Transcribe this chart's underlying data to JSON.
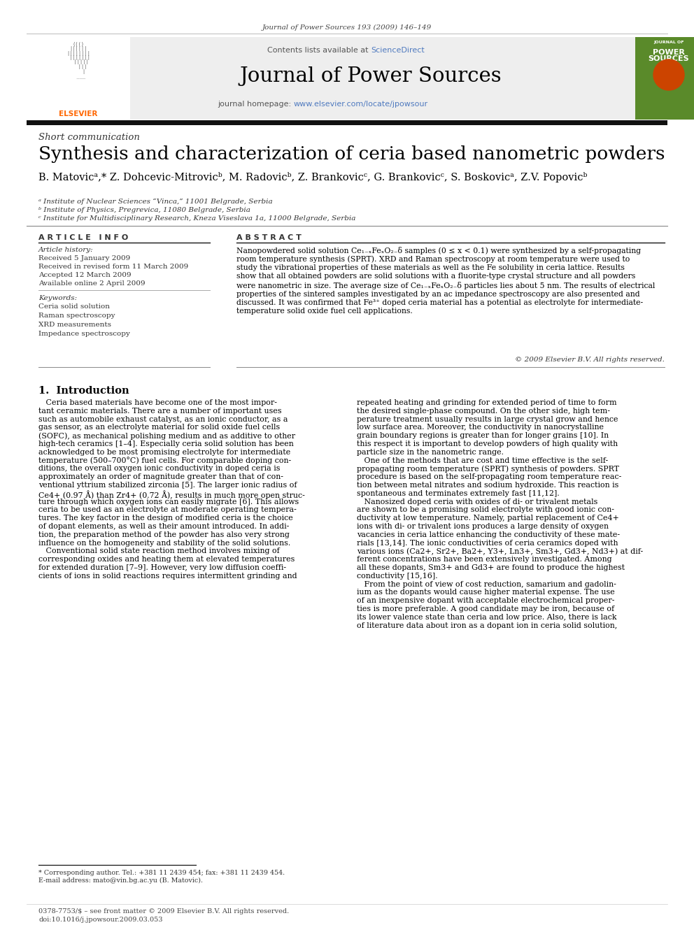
{
  "page_bg": "#ffffff",
  "header_journal": "Journal of Power Sources 193 (2009) 146–149",
  "journal_title": "Journal of Power Sources",
  "contents_text": "Contents lists available at ",
  "sciencedirect_text": "ScienceDirect",
  "homepage_prefix": "journal homepage: ",
  "homepage_link": "www.elsevier.com/locate/jpowsour",
  "section_label": "Short communication",
  "paper_title": "Synthesis and characterization of ceria based nanometric powders",
  "affil_a": "ᵃ Institute of Nuclear Sciences “Vinca,” 11001 Belgrade, Serbia",
  "affil_b": "ᵇ Institute of Physics, Pregrevica, 11080 Belgrade, Serbia",
  "affil_c": "ᶜ Institute for Multidisciplinary Research, Kneza Viseslava 1a, 11000 Belgrade, Serbia",
  "article_info_label": "A R T I C L E   I N F O",
  "abstract_label": "A B S T R A C T",
  "article_history_label": "Article history:",
  "received": "Received 5 January 2009",
  "revised": "Received in revised form 11 March 2009",
  "accepted": "Accepted 12 March 2009",
  "available": "Available online 2 April 2009",
  "keywords_label": "Keywords:",
  "keywords": [
    "Ceria solid solution",
    "Raman spectroscopy",
    "XRD measurements",
    "Impedance spectroscopy"
  ],
  "abstract_text": "Nanopowdered solid solution Ce1−xFexO2−δ samples (0 ≤ x < 0.1) were synthesized by a self-propagating room temperature synthesis (SPRT). XRD and Raman spectroscopy at room temperature were used to study the vibrational properties of these materials as well as the Fe solubility in ceria lattice. Results show that all obtained powders are solid solutions with a fluorite-type crystal structure and all powders were nanometric in size. The average size of Ce1−xFexO2−δ particles lies about 5 nm. The results of electrical properties of the sintered samples investigated by an ac impedance spectroscopy are also presented and discussed. It was confirmed that Fe3+ doped ceria material has a potential as electrolyte for intermediate-temperature solid oxide fuel cell applications.",
  "copyright": "© 2009 Elsevier B.V. All rights reserved.",
  "intro_heading": "1.  Introduction",
  "intro_col1_lines": [
    "   Ceria based materials have become one of the most impor-",
    "tant ceramic materials. There are a number of important uses",
    "such as automobile exhaust catalyst, as an ionic conductor, as a",
    "gas sensor, as an electrolyte material for solid oxide fuel cells",
    "(SOFC), as mechanical polishing medium and as additive to other",
    "high-tech ceramics [1–4]. Especially ceria solid solution has been",
    "acknowledged to be most promising electrolyte for intermediate",
    "temperature (500–700°C) fuel cells. For comparable doping con-",
    "ditions, the overall oxygen ionic conductivity in doped ceria is",
    "approximately an order of magnitude greater than that of con-",
    "ventional yttrium stabilized zirconia [5]. The larger ionic radius of",
    "Ce4+ (0.97 Å) than Zr4+ (0.72 Å), results in much more open struc-",
    "ture through which oxygen ions can easily migrate [6]. This allows",
    "ceria to be used as an electrolyte at moderate operating tempera-",
    "tures. The key factor in the design of modified ceria is the choice",
    "of dopant elements, as well as their amount introduced. In addi-",
    "tion, the preparation method of the powder has also very strong",
    "influence on the homogeneity and stability of the solid solutions.",
    "   Conventional solid state reaction method involves mixing of",
    "corresponding oxides and heating them at elevated temperatures",
    "for extended duration [7–9]. However, very low diffusion coeffi-",
    "cients of ions in solid reactions requires intermittent grinding and"
  ],
  "intro_col2_lines": [
    "repeated heating and grinding for extended period of time to form",
    "the desired single-phase compound. On the other side, high tem-",
    "perature treatment usually results in large crystal grow and hence",
    "low surface area. Moreover, the conductivity in nanocrystalline",
    "grain boundary regions is greater than for longer grains [10]. In",
    "this respect it is important to develop powders of high quality with",
    "particle size in the nanometric range.",
    "   One of the methods that are cost and time effective is the self-",
    "propagating room temperature (SPRT) synthesis of powders. SPRT",
    "procedure is based on the self-propagating room temperature reac-",
    "tion between metal nitrates and sodium hydroxide. This reaction is",
    "spontaneous and terminates extremely fast [11,12].",
    "   Nanosized doped ceria with oxides of di- or trivalent metals",
    "are shown to be a promising solid electrolyte with good ionic con-",
    "ductivity at low temperature. Namely, partial replacement of Ce4+",
    "ions with di- or trivalent ions produces a large density of oxygen",
    "vacancies in ceria lattice enhancing the conductivity of these mate-",
    "rials [13,14]. The ionic conductivities of ceria ceramics doped with",
    "various ions (Ca2+, Sr2+, Ba2+, Y3+, Ln3+, Sm3+, Gd3+, Nd3+) at dif-",
    "ferent concentrations have been extensively investigated. Among",
    "all these dopants, Sm3+ and Gd3+ are found to produce the highest",
    "conductivity [15,16].",
    "   From the point of view of cost reduction, samarium and gadolin-",
    "ium as the dopants would cause higher material expense. The use",
    "of an inexpensive dopant with acceptable electrochemical proper-",
    "ties is more preferable. A good candidate may be iron, because of",
    "its lower valence state than ceria and low price. Also, there is lack",
    "of literature data about iron as a dopant ion in ceria solid solution,"
  ],
  "footnote1": "* Corresponding author. Tel.: +381 11 2439 454; fax: +381 11 2439 454.",
  "footnote2": "E-mail address: mato@vin.bg.ac.yu (B. Matovic).",
  "footer1": "0378-7753/$ – see front matter © 2009 Elsevier B.V. All rights reserved.",
  "footer2": "doi:10.1016/j.jpowsour.2009.03.053",
  "sciencedirect_color": "#4f7abf",
  "link_color": "#4f7abf",
  "journal_cover_green": "#5a8a2a",
  "authors_line": "B. Matovicᵃ,* Z. Dohcevic-Mitrovicᵇ, M. Radovicᵇ, Z. Brankovicᶜ, G. Brankovicᶜ, S. Boskovicᵃ, Z.V. Popovicᵇ"
}
